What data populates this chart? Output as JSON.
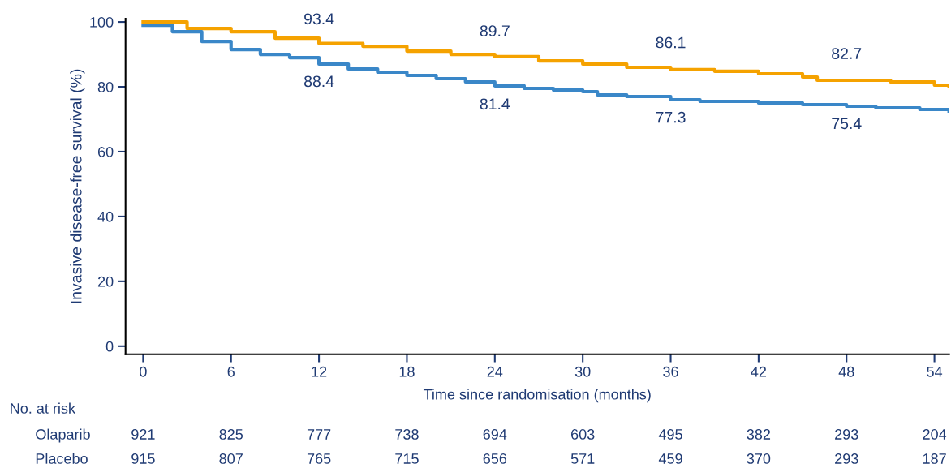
{
  "chart_data": {
    "type": "step",
    "ylabel": "Invasive disease-free survival (%)",
    "xlabel": "Time since randomisation (months)",
    "xlim": [
      -1.2,
      55
    ],
    "ylim": [
      -2.5,
      101
    ],
    "xticks": [
      0,
      6,
      12,
      18,
      24,
      30,
      36,
      42,
      48,
      54
    ],
    "yticks": [
      0,
      20,
      40,
      60,
      80,
      100
    ],
    "grid": false,
    "series": [
      {
        "color": "#f5a200",
        "x": [
          0,
          3,
          6,
          9,
          12,
          15,
          18,
          21,
          24,
          27,
          30,
          33,
          36,
          39,
          42,
          45,
          46,
          48,
          51,
          54,
          55
        ],
        "values": [
          100,
          98,
          97,
          95,
          93.4,
          92.5,
          91,
          90,
          89.3,
          88,
          87,
          86,
          85.3,
          84.8,
          84,
          83,
          82,
          82,
          81.5,
          80.5,
          80
        ]
      },
      {
        "color": "#3a87c8",
        "x": [
          0,
          2,
          4,
          6,
          8,
          10,
          12,
          14,
          16,
          18,
          20,
          22,
          24,
          26,
          28,
          30,
          31,
          33,
          36,
          38,
          42,
          45,
          48,
          50,
          53,
          55
        ],
        "values": [
          99,
          97,
          94,
          91.5,
          90,
          89,
          87,
          85.5,
          84.5,
          83.5,
          82.5,
          81.5,
          80.3,
          79.5,
          79,
          78.5,
          77.5,
          77,
          76,
          75.5,
          75,
          74.5,
          74,
          73.5,
          73,
          72.5
        ]
      }
    ],
    "annotations": [
      {
        "text": "93.4",
        "x": 12,
        "y": 93.4
      },
      {
        "text": "88.4",
        "x": 12,
        "y": 88.4
      },
      {
        "text": "89.7",
        "x": 24,
        "y": 89.7
      },
      {
        "text": "81.4",
        "x": 24,
        "y": 81.4
      },
      {
        "text": "86.1",
        "x": 36,
        "y": 86.1
      },
      {
        "text": "77.3",
        "x": 36,
        "y": 77.3
      },
      {
        "text": "82.7",
        "x": 48,
        "y": 82.7
      },
      {
        "text": "75.4",
        "x": 48,
        "y": 75.4
      },
      "No. at risk",
      "Olaparib",
      "921",
      "825",
      "777",
      "738",
      "694",
      "603",
      "495",
      "382",
      "293",
      "204",
      "Placebo",
      "915",
      "807",
      "765",
      "715",
      "656",
      "571",
      "459",
      "370",
      "293",
      "187"
    ]
  }
}
